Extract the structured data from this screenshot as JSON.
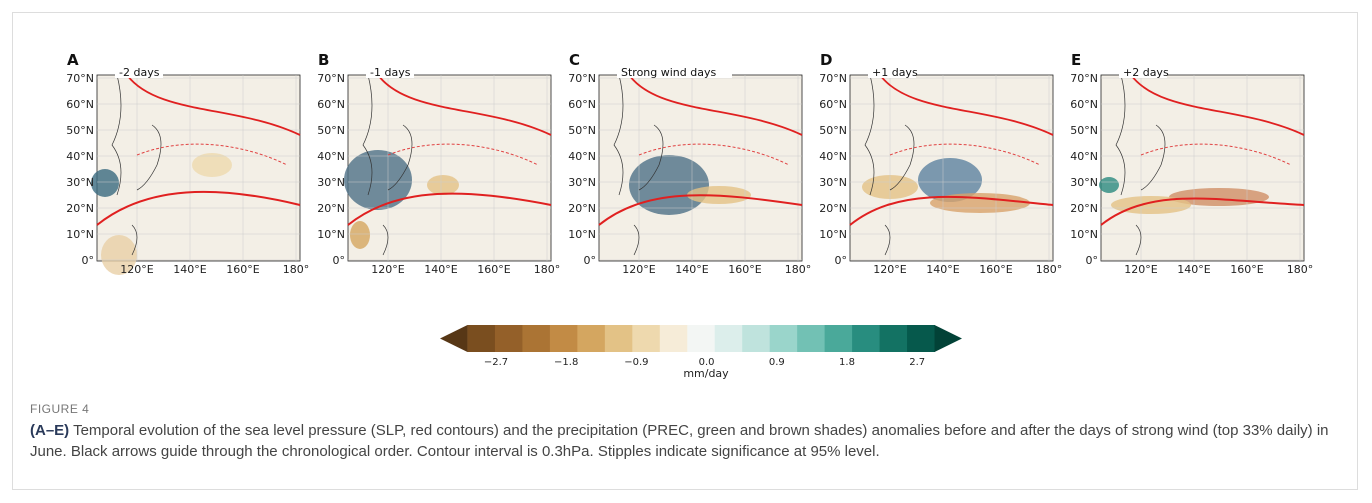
{
  "figure": {
    "panels": [
      {
        "letter": "A",
        "subtitle": "-2 days"
      },
      {
        "letter": "B",
        "subtitle": "-1 days"
      },
      {
        "letter": "C",
        "subtitle": "Strong wind days"
      },
      {
        "letter": "D",
        "subtitle": "+1 days"
      },
      {
        "letter": "E",
        "subtitle": "+2 days"
      }
    ],
    "lat_ticks": [
      "70°N",
      "60°N",
      "50°N",
      "40°N",
      "30°N",
      "20°N",
      "10°N",
      "0°"
    ],
    "lon_ticks": [
      "120°E",
      "140°E",
      "160°E",
      "180°"
    ],
    "colorbar": {
      "ticks": [
        "−2.7",
        "−1.8",
        "−0.9",
        "0.0",
        "0.9",
        "1.8",
        "2.7"
      ],
      "label": "mm/day",
      "colors": [
        "#573716",
        "#7a4e1f",
        "#946029",
        "#ab7434",
        "#c28b45",
        "#d4a660",
        "#e3c286",
        "#eed9ae",
        "#f6ecd8",
        "#f3f6f4",
        "#dceeeb",
        "#bfe3dd",
        "#9ad5cb",
        "#72c1b4",
        "#4aa99a",
        "#288d7f",
        "#137263",
        "#06594c",
        "#024237"
      ]
    },
    "label": "FIGURE 4",
    "caption": {
      "lead": "(A–E)",
      "text": " Temporal evolution of the sea level pressure (SLP, red contours) and the precipitation (PREC, green and brown shades) anomalies before and after the days of strong wind (top 33% daily) in June. Black arrows guide through the chronological order. Contour interval is 0.3hPa. Stipples indicate significance at 95% level."
    }
  }
}
